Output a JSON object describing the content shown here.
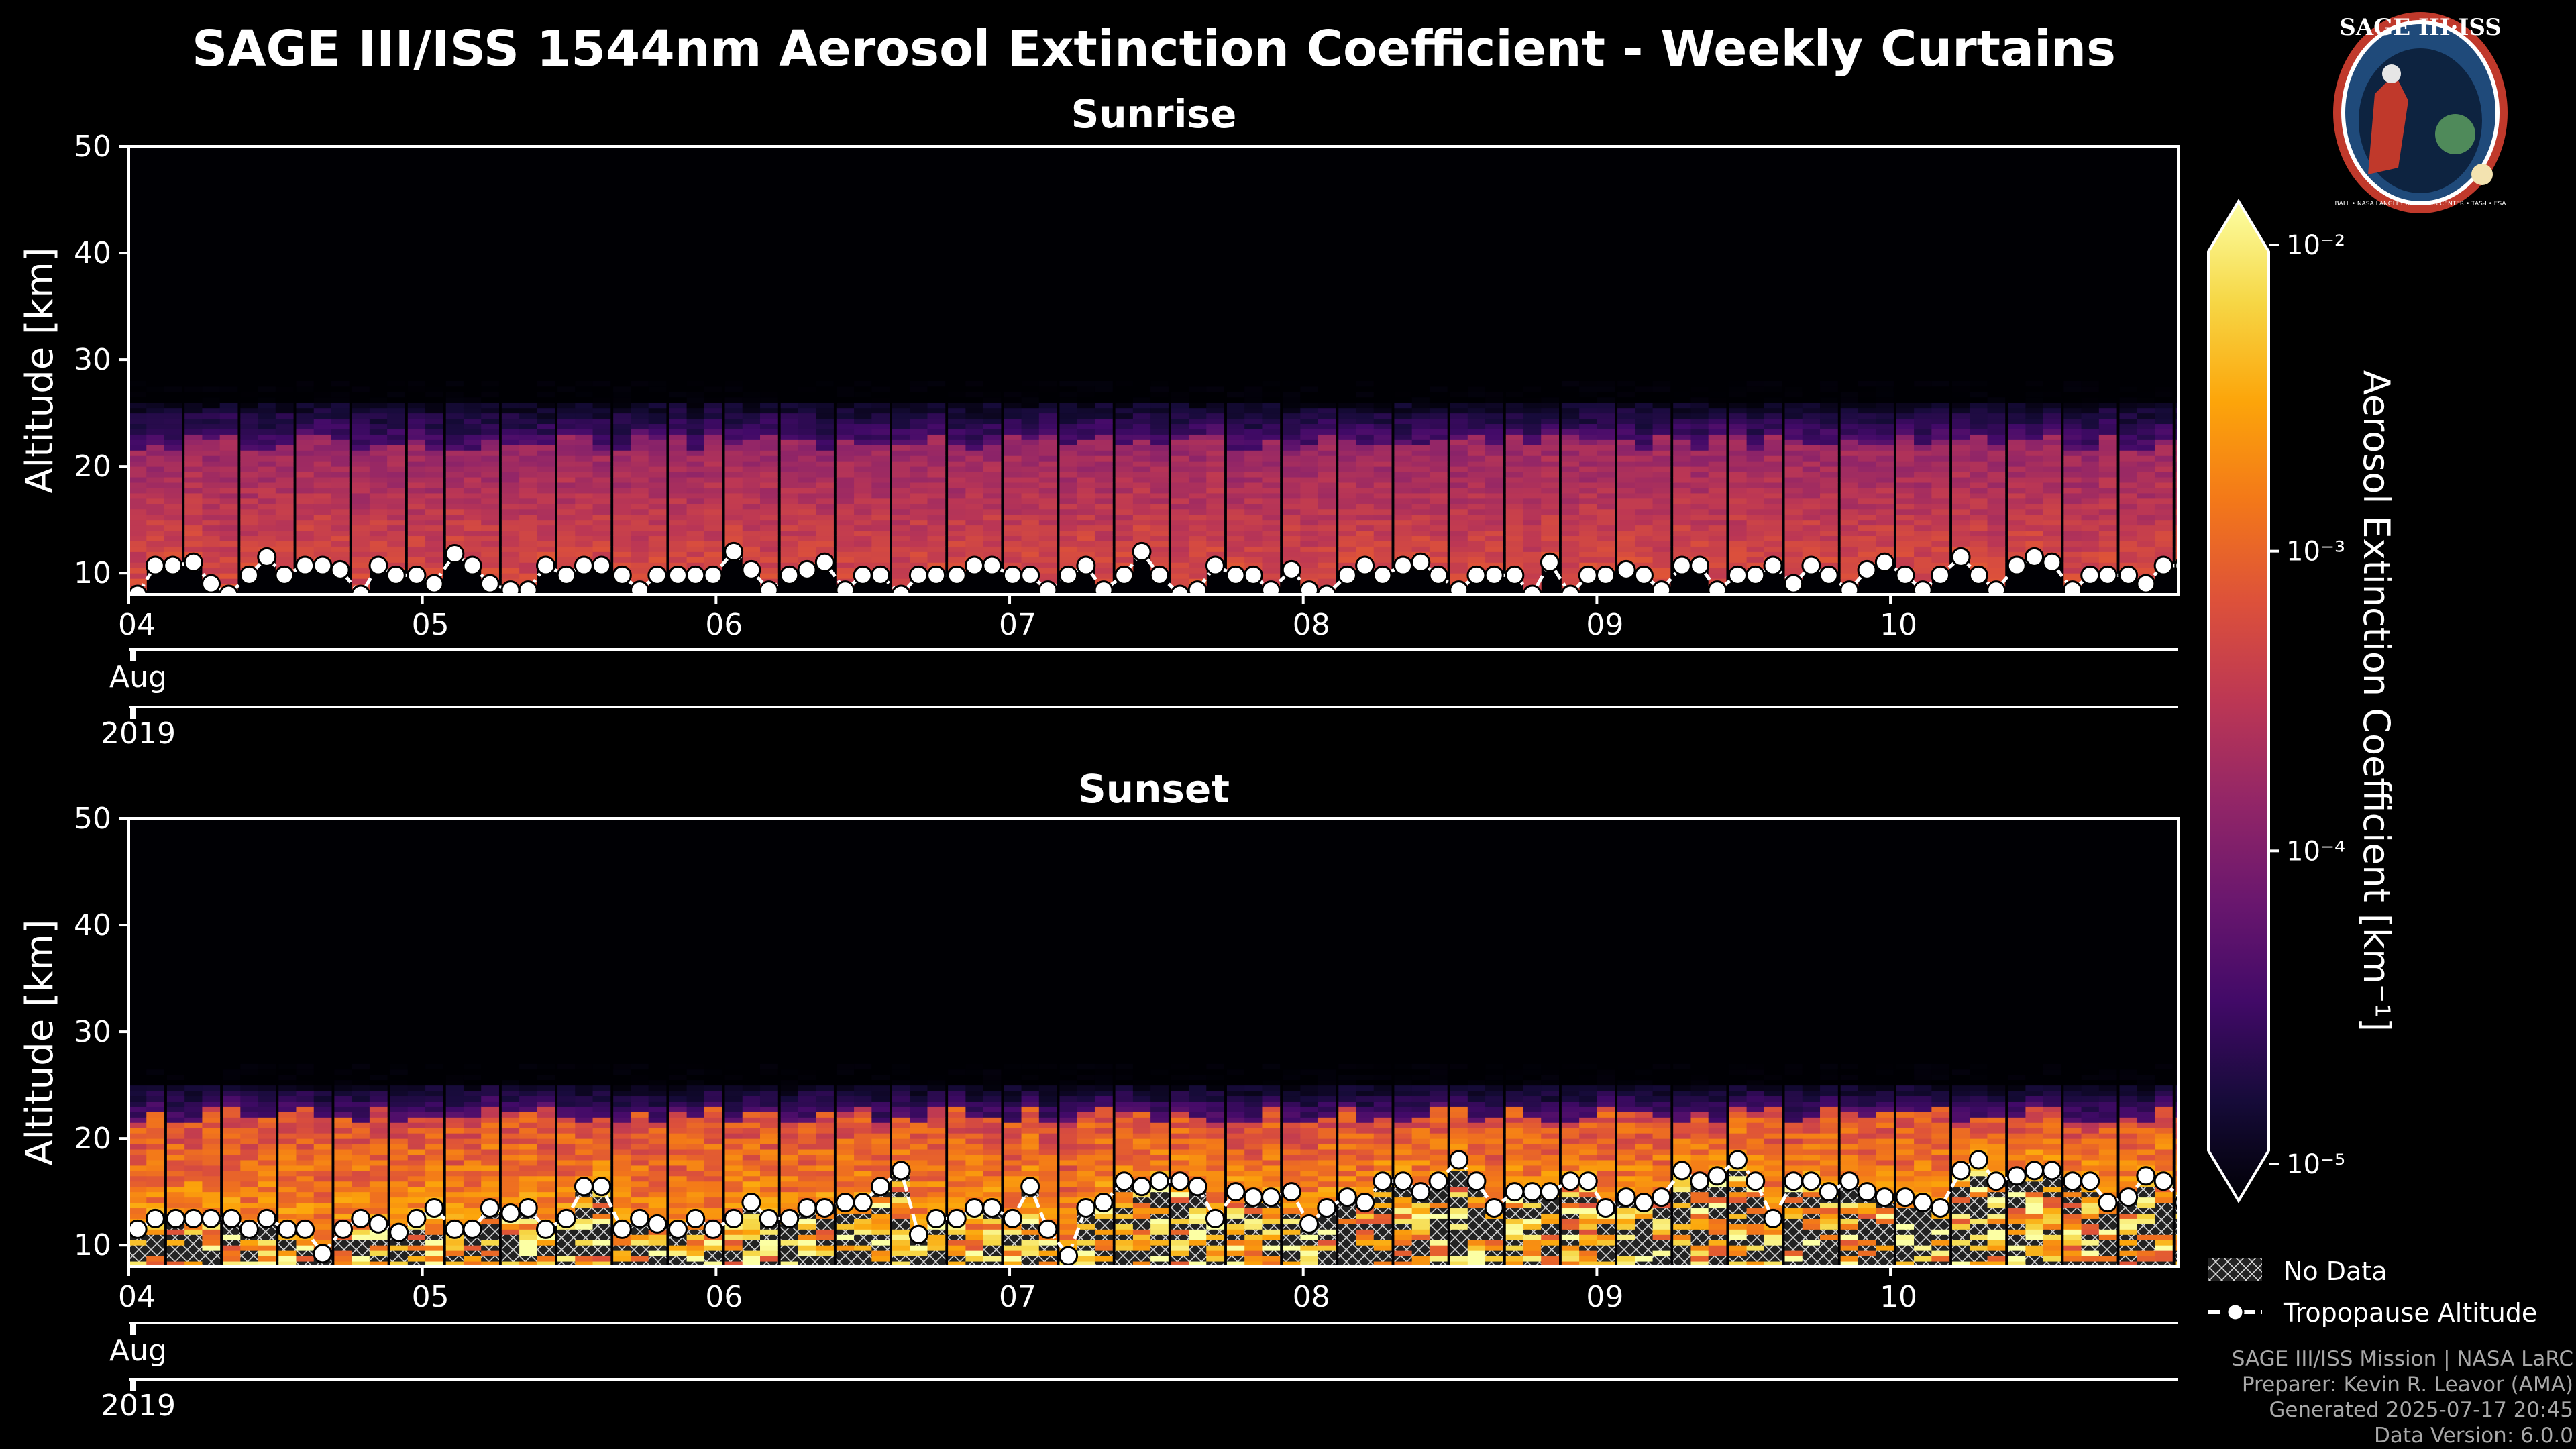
{
  "title": "SAGE III/ISS 1544nm Aerosol Extinction Coefficient - Weekly Curtains",
  "logo": {
    "top_text": "SAGE III·ISS",
    "ring_text": "BALL • NASA LANGLEY RESEARCH CENTER • TAS-I • ESA"
  },
  "panels": [
    {
      "title": "Sunrise",
      "ylabel": "Altitude [km]"
    },
    {
      "title": "Sunset",
      "ylabel": "Altitude [km]"
    }
  ],
  "x_ticks": [
    "04",
    "05",
    "06",
    "07",
    "08",
    "09",
    "10"
  ],
  "x_month": "Aug",
  "x_year": "2019",
  "colorbar": {
    "label": "Aerosol Extinction Coefficient [km⁻¹]",
    "ticks": [
      "10⁻²",
      "10⁻³",
      "10⁻⁴",
      "10⁻⁵"
    ],
    "colormap": "inferno"
  },
  "legend": {
    "no_data": "No Data",
    "tropopause": "Tropopause Altitude"
  },
  "footer": [
    "SAGE III/ISS Mission | NASA LaRC",
    "Preparer: Kevin R. Leavor (AMA)",
    "Generated 2025-07-17 20:45",
    "Data Version: 6.0.0"
  ],
  "chart_data": [
    {
      "type": "heatmap",
      "title": "Sunrise",
      "xlabel": "",
      "ylabel": "Altitude [km]",
      "x_range_days": [
        4.0,
        10.98
      ],
      "ylim": [
        8,
        50
      ],
      "yticks": [
        10,
        20,
        30,
        40,
        50
      ],
      "xticks": [
        "04",
        "05",
        "06",
        "07",
        "08",
        "09",
        "10"
      ],
      "color_scale": "log10",
      "clim": [
        1e-05,
        0.01
      ],
      "aerosol_layer_top_km": 22,
      "aerosol_layer_fade_top_km": 26,
      "typical_extinction_in_layer": 0.0003,
      "tropopause": {
        "days": [
          4.0,
          4.06,
          4.12,
          4.19,
          4.25,
          4.31,
          4.38,
          4.44,
          4.5,
          4.57,
          4.63,
          4.69,
          4.76,
          4.82,
          4.88,
          4.95,
          5.01,
          5.08,
          5.14,
          5.2,
          5.27,
          5.33,
          5.39,
          5.46,
          5.52,
          5.58,
          5.65,
          5.71,
          5.77,
          5.84,
          5.9,
          5.96,
          6.03,
          6.09,
          6.15,
          6.22,
          6.28,
          6.34,
          6.41,
          6.47,
          6.53,
          6.6,
          6.66,
          6.72,
          6.79,
          6.85,
          6.91,
          6.98,
          7.04,
          7.1,
          7.17,
          7.23,
          7.29,
          7.36,
          7.42,
          7.48,
          7.55,
          7.61,
          7.67,
          7.74,
          7.8,
          7.86,
          7.93,
          7.99,
          8.05,
          8.12,
          8.18,
          8.24,
          8.31,
          8.37,
          8.43,
          8.5,
          8.56,
          8.62,
          8.69,
          8.75,
          8.81,
          8.88,
          8.94,
          9.0,
          9.07,
          9.13,
          9.19,
          9.26,
          9.32,
          9.38,
          9.45,
          9.51,
          9.57,
          9.64,
          9.7,
          9.76,
          9.83,
          9.89,
          9.95,
          10.02,
          10.08,
          10.14,
          10.21,
          10.27,
          10.33,
          10.4,
          10.46,
          10.52,
          10.59,
          10.65,
          10.71,
          10.78,
          10.84,
          10.9,
          10.97
        ],
        "altitude_km": [
          8.0,
          10.7,
          10.7,
          11.0,
          9.0,
          8.0,
          9.8,
          11.5,
          9.8,
          10.7,
          10.7,
          10.3,
          8.0,
          10.7,
          9.8,
          9.8,
          9.0,
          11.8,
          10.7,
          9.0,
          8.4,
          8.4,
          10.7,
          9.8,
          10.7,
          10.7,
          9.8,
          8.4,
          9.8,
          9.8,
          9.8,
          9.8,
          12.0,
          10.3,
          8.4,
          9.8,
          10.3,
          11.0,
          8.4,
          9.8,
          9.8,
          8.0,
          9.8,
          9.8,
          9.8,
          10.7,
          10.7,
          9.8,
          9.8,
          8.4,
          9.8,
          10.7,
          8.4,
          9.8,
          12.0,
          9.8,
          8.0,
          8.4,
          10.7,
          9.8,
          9.8,
          8.4,
          10.3,
          8.4,
          8.0,
          9.8,
          10.7,
          9.8,
          10.7,
          11.0,
          9.8,
          8.4,
          9.8,
          9.8,
          9.8,
          8.0,
          11.0,
          8.0,
          9.8,
          9.8,
          10.3,
          9.8,
          8.4,
          10.7,
          10.7,
          8.4,
          9.8,
          9.8,
          10.7,
          9.0,
          10.7,
          9.8,
          8.4,
          10.3,
          11.0,
          9.8,
          8.4,
          9.8,
          11.5,
          9.8,
          8.4,
          10.7,
          11.5,
          11.0,
          8.4,
          9.8,
          9.8,
          9.8,
          9.0,
          10.7,
          10.7
        ]
      }
    },
    {
      "type": "heatmap",
      "title": "Sunset",
      "xlabel": "",
      "ylabel": "Altitude [km]",
      "x_range_days": [
        4.0,
        10.97
      ],
      "ylim": [
        8,
        50
      ],
      "yticks": [
        10,
        20,
        30,
        40,
        50
      ],
      "xticks": [
        "04",
        "05",
        "06",
        "07",
        "08",
        "09",
        "10"
      ],
      "color_scale": "log10",
      "clim": [
        1e-05,
        0.01
      ],
      "aerosol_layer_top_km": 22,
      "aerosol_layer_fade_top_km": 25,
      "typical_extinction_in_layer": 0.001,
      "tropopause": {
        "days": [
          4.0,
          4.06,
          4.13,
          4.19,
          4.25,
          4.32,
          4.38,
          4.44,
          4.51,
          4.57,
          4.63,
          4.7,
          4.76,
          4.82,
          4.89,
          4.95,
          5.01,
          5.08,
          5.14,
          5.2,
          5.27,
          5.33,
          5.39,
          5.46,
          5.52,
          5.58,
          5.65,
          5.71,
          5.77,
          5.84,
          5.9,
          5.96,
          6.03,
          6.09,
          6.15,
          6.22,
          6.28,
          6.34,
          6.41,
          6.47,
          6.53,
          6.6,
          6.66,
          6.72,
          6.79,
          6.85,
          6.91,
          6.98,
          7.04,
          7.1,
          7.17,
          7.23,
          7.29,
          7.36,
          7.42,
          7.48,
          7.55,
          7.61,
          7.67,
          7.74,
          7.8,
          7.86,
          7.93,
          7.99,
          8.05,
          8.12,
          8.18,
          8.24,
          8.31,
          8.37,
          8.43,
          8.5,
          8.56,
          8.62,
          8.69,
          8.75,
          8.81,
          8.88,
          8.94,
          9.0,
          9.07,
          9.13,
          9.19,
          9.26,
          9.32,
          9.38,
          9.45,
          9.51,
          9.57,
          9.64,
          9.7,
          9.76,
          9.83,
          9.89,
          9.95,
          10.02,
          10.08,
          10.14,
          10.21,
          10.27,
          10.33,
          10.4,
          10.46,
          10.52,
          10.59,
          10.65,
          10.71,
          10.78,
          10.84,
          10.9,
          10.97
        ],
        "altitude_km": [
          11.5,
          12.5,
          12.5,
          12.5,
          12.5,
          12.5,
          11.5,
          12.5,
          11.5,
          11.5,
          9.2,
          11.5,
          12.5,
          12.0,
          11.2,
          12.5,
          13.5,
          11.5,
          11.5,
          13.5,
          13.0,
          13.5,
          11.5,
          12.5,
          15.5,
          15.5,
          11.5,
          12.5,
          12.0,
          11.5,
          12.5,
          11.5,
          12.5,
          14.0,
          12.5,
          12.5,
          13.5,
          13.5,
          14.0,
          14.0,
          15.5,
          17.0,
          11.0,
          12.5,
          12.5,
          13.5,
          13.5,
          12.5,
          15.5,
          11.5,
          9.0,
          13.5,
          14.0,
          16.0,
          15.5,
          16.0,
          16.0,
          15.5,
          12.5,
          15.0,
          14.5,
          14.5,
          15.0,
          12.0,
          13.5,
          14.5,
          14.0,
          16.0,
          16.0,
          15.0,
          16.0,
          18.0,
          16.0,
          13.5,
          15.0,
          15.0,
          15.0,
          16.0,
          16.0,
          13.5,
          14.5,
          14.0,
          14.5,
          17.0,
          16.0,
          16.5,
          18.0,
          16.0,
          12.5,
          16.0,
          16.0,
          15.0,
          16.0,
          15.0,
          14.5,
          14.5,
          14.0,
          13.5,
          17.0,
          18.0,
          16.0,
          16.5,
          17.0,
          17.0,
          16.0,
          16.0,
          14.0,
          14.5,
          16.5,
          16.0,
          14.0
        ]
      }
    }
  ]
}
